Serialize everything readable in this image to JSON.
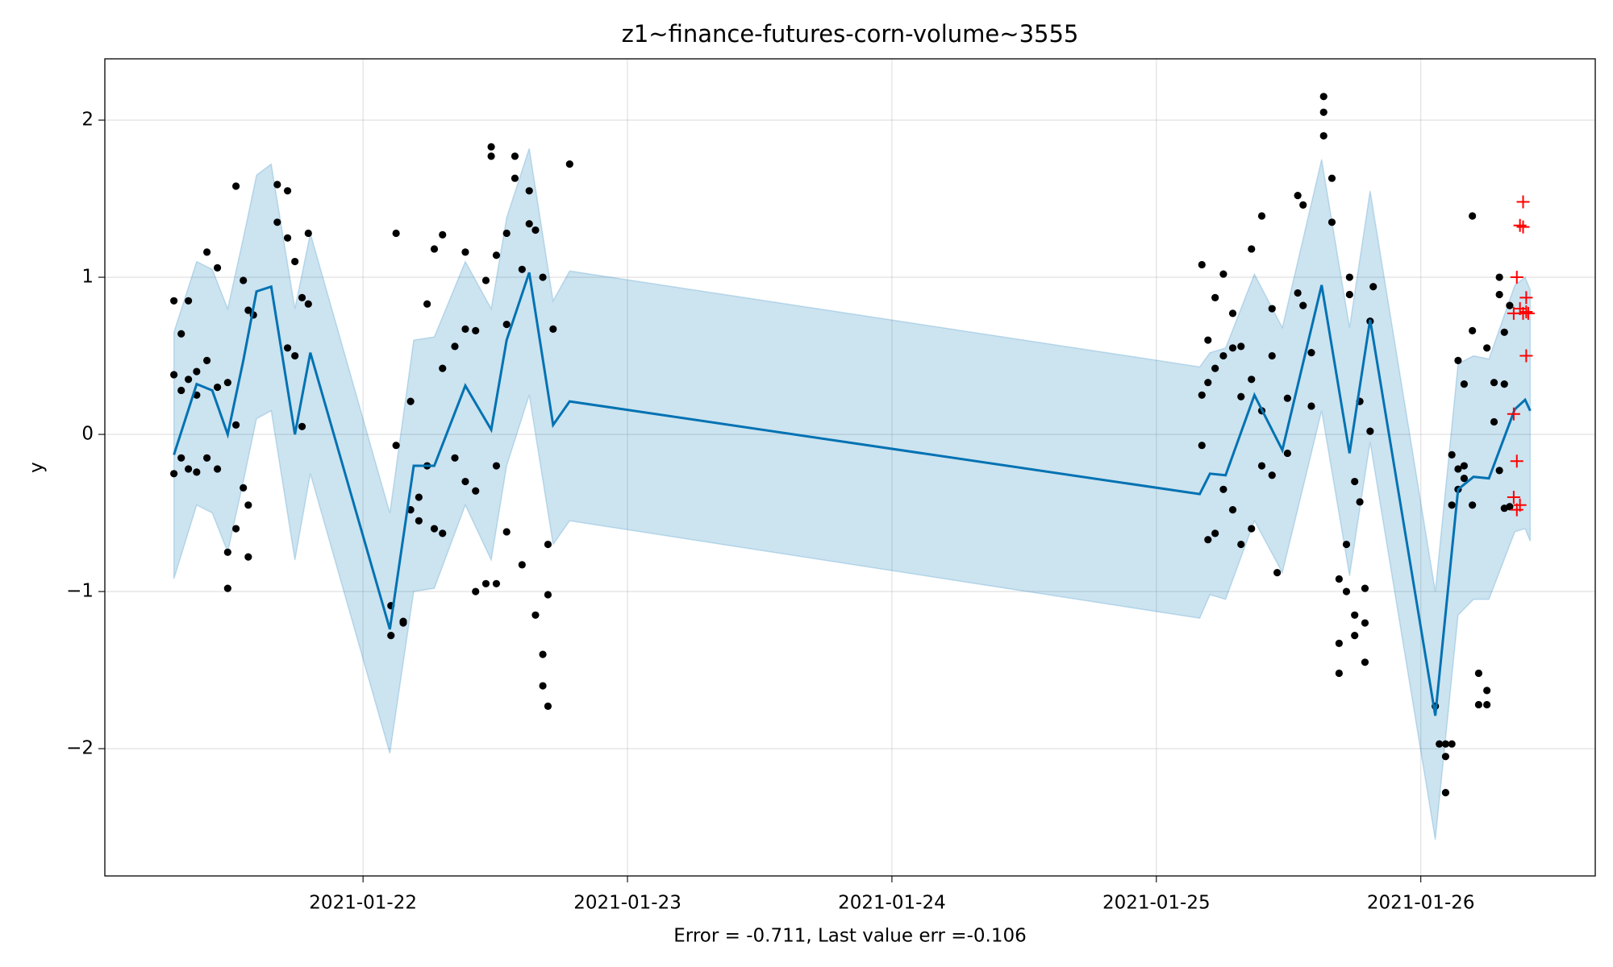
{
  "chart_data": {
    "type": "forecast",
    "title": "z1~finance-futures-corn-volume~3555",
    "x_label": "Error = -0.711, Last value err =-0.106",
    "y_label": "y",
    "xlim": [
      "2021-01-21T00:34",
      "2021-01-26T15:50"
    ],
    "ylim": [
      -2.81,
      2.39
    ],
    "xticks": [
      "2021-01-22",
      "2021-01-23",
      "2021-01-24",
      "2021-01-25",
      "2021-01-26"
    ],
    "yticks": [
      {
        "value": -2,
        "label": "−2"
      },
      {
        "value": -1,
        "label": "−1"
      },
      0,
      1,
      2
    ],
    "grid": true,
    "forecast": {
      "color": "#0072b2",
      "band_color": "#0072b2",
      "x": [
        "2021-01-21T06:50",
        "2021-01-21T08:54",
        "2021-01-21T10:19",
        "2021-01-21T11:43",
        "2021-01-21T13:08",
        "2021-01-21T14:20",
        "2021-01-21T15:40",
        "2021-01-21T17:49",
        "2021-01-21T19:13",
        "2021-01-22T02:26",
        "2021-01-22T04:36",
        "2021-01-22T06:28",
        "2021-01-22T09:17",
        "2021-01-22T11:38",
        "2021-01-22T13:02",
        "2021-01-22T15:05",
        "2021-01-22T17:15",
        "2021-01-22T18:45",
        "2021-01-25T03:56",
        "2021-01-25T04:52",
        "2021-01-25T06:17",
        "2021-01-25T08:54",
        "2021-01-25T11:26",
        "2021-01-25T15:00",
        "2021-01-25T17:32",
        "2021-01-25T19:24",
        "2021-01-26T01:19",
        "2021-01-26T03:23",
        "2021-01-26T04:47",
        "2021-01-26T06:11",
        "2021-01-26T08:32",
        "2021-01-26T09:28",
        "2021-01-26T09:56"
      ],
      "values": [
        -0.13,
        0.32,
        0.28,
        0.0,
        0.47,
        0.91,
        0.94,
        0.0,
        0.52,
        -1.24,
        -0.2,
        -0.2,
        0.31,
        0.03,
        0.6,
        1.03,
        0.06,
        0.21,
        -0.38,
        -0.25,
        -0.26,
        0.25,
        -0.1,
        0.95,
        -0.12,
        0.73,
        -1.79,
        -0.35,
        -0.27,
        -0.28,
        0.16,
        0.22,
        0.15
      ],
      "upper": [
        0.65,
        1.1,
        1.05,
        0.8,
        1.25,
        1.65,
        1.72,
        0.8,
        1.28,
        -0.5,
        0.6,
        0.62,
        1.1,
        0.8,
        1.38,
        1.82,
        0.85,
        1.04,
        0.43,
        0.52,
        0.55,
        1.02,
        0.68,
        1.75,
        0.68,
        1.55,
        -1.0,
        0.45,
        0.5,
        0.48,
        0.95,
        1.0,
        0.92
      ],
      "lower": [
        -0.92,
        -0.45,
        -0.5,
        -0.75,
        -0.3,
        0.1,
        0.15,
        -0.8,
        -0.25,
        -2.03,
        -1.0,
        -0.98,
        -0.45,
        -0.8,
        -0.2,
        0.25,
        -0.7,
        -0.55,
        -1.17,
        -1.02,
        -1.05,
        -0.55,
        -0.88,
        0.15,
        -0.9,
        -0.05,
        -2.58,
        -1.15,
        -1.05,
        -1.05,
        -0.62,
        -0.6,
        -0.68
      ]
    },
    "observed": {
      "color": "#000000",
      "x": [
        "2021-01-21T06:50",
        "2021-01-21T06:50",
        "2021-01-21T06:50",
        "2021-01-21T07:30",
        "2021-01-21T07:30",
        "2021-01-21T07:30",
        "2021-01-21T08:09",
        "2021-01-21T08:09",
        "2021-01-21T08:09",
        "2021-01-21T08:54",
        "2021-01-21T08:54",
        "2021-01-21T08:54",
        "2021-01-21T09:50",
        "2021-01-21T09:50",
        "2021-01-21T09:50",
        "2021-01-21T10:47",
        "2021-01-21T10:47",
        "2021-01-21T10:47",
        "2021-01-21T11:43",
        "2021-01-21T11:43",
        "2021-01-21T11:43",
        "2021-01-21T12:28",
        "2021-01-21T12:28",
        "2021-01-21T12:28",
        "2021-01-21T13:08",
        "2021-01-21T13:08",
        "2021-01-21T13:35",
        "2021-01-21T13:35",
        "2021-01-21T13:35",
        "2021-01-21T14:03",
        "2021-01-21T16:13",
        "2021-01-21T16:13",
        "2021-01-21T17:09",
        "2021-01-21T17:09",
        "2021-01-21T17:09",
        "2021-01-21T17:49",
        "2021-01-21T17:49",
        "2021-01-21T18:28",
        "2021-01-21T18:28",
        "2021-01-21T19:02",
        "2021-01-21T19:02",
        "2021-01-22T02:32",
        "2021-01-22T02:32",
        "2021-01-22T03:00",
        "2021-01-22T03:00",
        "2021-01-22T03:39",
        "2021-01-22T03:39",
        "2021-01-22T04:19",
        "2021-01-22T04:19",
        "2021-01-22T05:04",
        "2021-01-22T05:04",
        "2021-01-22T05:49",
        "2021-01-22T05:49",
        "2021-01-22T06:28",
        "2021-01-22T06:28",
        "2021-01-22T07:13",
        "2021-01-22T07:13",
        "2021-01-22T07:13",
        "2021-01-22T08:20",
        "2021-01-22T08:20",
        "2021-01-22T09:17",
        "2021-01-22T09:17",
        "2021-01-22T09:17",
        "2021-01-22T10:13",
        "2021-01-22T10:13",
        "2021-01-22T10:13",
        "2021-01-22T11:09",
        "2021-01-22T11:09",
        "2021-01-22T11:38",
        "2021-01-22T11:38",
        "2021-01-22T12:06",
        "2021-01-22T12:06",
        "2021-01-22T12:06",
        "2021-01-22T13:02",
        "2021-01-22T13:02",
        "2021-01-22T13:02",
        "2021-01-22T13:47",
        "2021-01-22T13:47",
        "2021-01-22T14:26",
        "2021-01-22T14:26",
        "2021-01-22T15:05",
        "2021-01-22T15:05",
        "2021-01-22T15:39",
        "2021-01-22T15:39",
        "2021-01-22T16:19",
        "2021-01-22T16:19",
        "2021-01-22T16:19",
        "2021-01-22T16:47",
        "2021-01-22T16:47",
        "2021-01-22T16:47",
        "2021-01-22T17:15",
        "2021-01-22T18:45",
        "2021-01-25T04:08",
        "2021-01-25T04:08",
        "2021-01-25T04:08",
        "2021-01-25T04:41",
        "2021-01-25T04:41",
        "2021-01-25T04:41",
        "2021-01-25T05:20",
        "2021-01-25T05:20",
        "2021-01-25T05:20",
        "2021-01-25T06:05",
        "2021-01-25T06:05",
        "2021-01-25T06:05",
        "2021-01-25T06:56",
        "2021-01-25T06:56",
        "2021-01-25T06:56",
        "2021-01-25T07:41",
        "2021-01-25T07:41",
        "2021-01-25T07:41",
        "2021-01-25T08:38",
        "2021-01-25T08:38",
        "2021-01-25T08:38",
        "2021-01-25T09:34",
        "2021-01-25T09:34",
        "2021-01-25T09:34",
        "2021-01-25T10:30",
        "2021-01-25T10:30",
        "2021-01-25T10:30",
        "2021-01-25T10:58",
        "2021-01-25T11:54",
        "2021-01-25T11:54",
        "2021-01-25T12:50",
        "2021-01-25T12:50",
        "2021-01-25T13:19",
        "2021-01-25T13:19",
        "2021-01-25T14:04",
        "2021-01-25T14:04",
        "2021-01-25T15:11",
        "2021-01-25T15:11",
        "2021-01-25T15:11",
        "2021-01-25T15:56",
        "2021-01-25T15:56",
        "2021-01-25T16:35",
        "2021-01-25T16:35",
        "2021-01-25T16:35",
        "2021-01-25T17:15",
        "2021-01-25T17:15",
        "2021-01-25T17:32",
        "2021-01-25T17:32",
        "2021-01-25T18:00",
        "2021-01-25T18:00",
        "2021-01-25T18:00",
        "2021-01-25T18:28",
        "2021-01-25T18:28",
        "2021-01-25T18:56",
        "2021-01-25T18:56",
        "2021-01-25T18:56",
        "2021-01-25T19:24",
        "2021-01-25T19:24",
        "2021-01-25T19:41",
        "2021-01-26T01:19",
        "2021-01-26T01:41",
        "2021-01-26T02:15",
        "2021-01-26T02:15",
        "2021-01-26T02:15",
        "2021-01-26T02:49",
        "2021-01-26T02:49",
        "2021-01-26T02:49",
        "2021-01-26T03:23",
        "2021-01-26T03:23",
        "2021-01-26T03:23",
        "2021-01-26T03:56",
        "2021-01-26T03:56",
        "2021-01-26T03:56",
        "2021-01-26T04:41",
        "2021-01-26T04:41",
        "2021-01-26T04:41",
        "2021-01-26T05:15",
        "2021-01-26T05:15",
        "2021-01-26T06:00",
        "2021-01-26T06:00",
        "2021-01-26T06:00",
        "2021-01-26T06:39",
        "2021-01-26T06:39",
        "2021-01-26T07:08",
        "2021-01-26T07:08",
        "2021-01-26T07:08",
        "2021-01-26T07:35",
        "2021-01-26T07:35",
        "2021-01-26T07:35",
        "2021-01-26T08:04",
        "2021-01-26T08:04"
      ],
      "values": [
        0.85,
        -0.25,
        0.38,
        0.64,
        -0.15,
        0.28,
        0.35,
        -0.22,
        0.85,
        0.4,
        -0.24,
        0.25,
        1.16,
        0.47,
        -0.15,
        0.3,
        -0.22,
        1.06,
        -0.75,
        -0.98,
        0.33,
        1.58,
        0.06,
        -0.6,
        0.98,
        -0.34,
        0.79,
        -0.78,
        -0.45,
        0.76,
        1.59,
        1.35,
        1.55,
        1.25,
        0.55,
        1.1,
        0.5,
        0.87,
        0.05,
        1.28,
        0.83,
        -1.09,
        -1.28,
        -0.07,
        1.28,
        -1.19,
        -1.2,
        0.21,
        -0.48,
        -0.4,
        -0.55,
        0.83,
        -0.2,
        1.18,
        -0.6,
        1.27,
        -0.63,
        0.42,
        0.56,
        -0.15,
        1.16,
        -0.3,
        0.67,
        0.66,
        -1.0,
        -0.36,
        0.98,
        -0.95,
        1.83,
        1.77,
        1.14,
        -0.95,
        -0.2,
        1.28,
        0.7,
        -0.62,
        1.77,
        1.63,
        1.05,
        -0.83,
        1.34,
        1.55,
        -1.15,
        1.3,
        -1.4,
        -1.6,
        1.0,
        -1.73,
        -0.7,
        -1.02,
        0.67,
        1.72,
        1.08,
        0.25,
        -0.07,
        0.6,
        -0.67,
        0.33,
        0.87,
        -0.63,
        0.42,
        1.02,
        0.5,
        -0.35,
        0.77,
        -0.48,
        0.55,
        0.56,
        -0.7,
        0.24,
        1.18,
        -0.6,
        0.35,
        1.39,
        0.15,
        -0.2,
        0.8,
        -0.26,
        0.5,
        -0.88,
        0.23,
        -0.12,
        1.52,
        0.9,
        1.46,
        0.82,
        0.52,
        0.18,
        2.15,
        2.05,
        1.9,
        1.63,
        1.35,
        -0.92,
        -1.33,
        -1.52,
        -1.0,
        -0.7,
        0.89,
        1.0,
        -0.3,
        -1.15,
        -1.28,
        -0.43,
        0.21,
        -1.2,
        -1.45,
        -0.98,
        0.72,
        0.02,
        0.94,
        -1.73,
        -1.97,
        -1.97,
        -2.28,
        -2.05,
        -1.97,
        -0.13,
        -0.45,
        0.47,
        -0.22,
        -0.35,
        0.32,
        -0.28,
        -0.2,
        1.39,
        0.66,
        -0.45,
        -1.72,
        -1.52,
        -1.72,
        -1.63,
        0.55,
        0.08,
        0.33,
        0.89,
        1.0,
        -0.23,
        -0.47,
        0.32,
        0.65,
        0.82,
        -0.46
      ]
    },
    "test": {
      "color": "#ff0000",
      "x": [
        "2021-01-26T08:26",
        "2021-01-26T08:26",
        "2021-01-26T08:26",
        "2021-01-26T08:43",
        "2021-01-26T08:43",
        "2021-01-26T08:43",
        "2021-01-26T09:00",
        "2021-01-26T09:00",
        "2021-01-26T09:00",
        "2021-01-26T09:17",
        "2021-01-26T09:17",
        "2021-01-26T09:17",
        "2021-01-26T09:34",
        "2021-01-26T09:34",
        "2021-01-26T09:34",
        "2021-01-26T09:45"
      ],
      "values": [
        0.13,
        -0.4,
        0.77,
        1.0,
        -0.48,
        -0.17,
        1.33,
        0.8,
        -0.45,
        1.48,
        0.77,
        1.32,
        0.5,
        0.87,
        0.78,
        0.77
      ]
    }
  }
}
